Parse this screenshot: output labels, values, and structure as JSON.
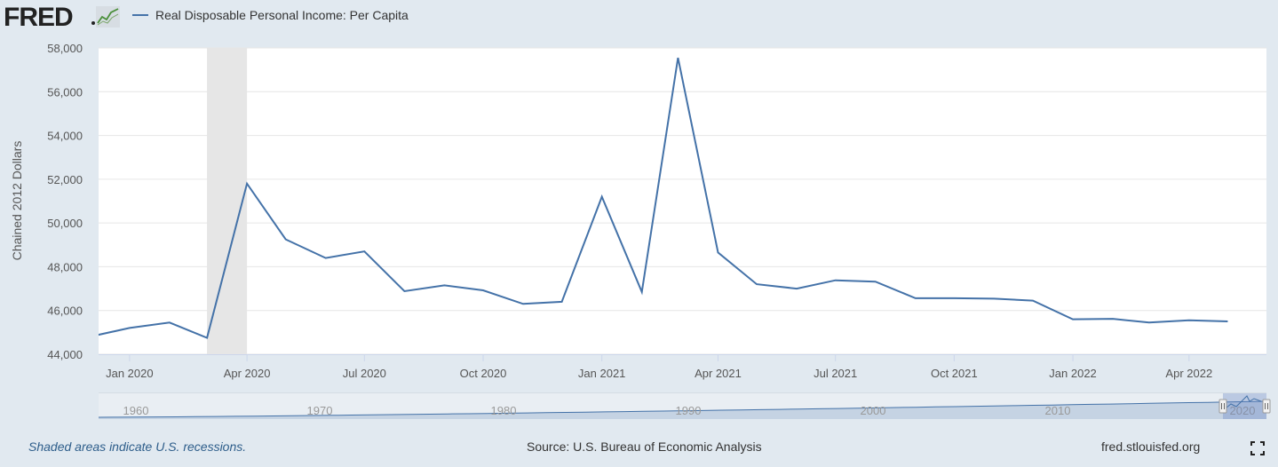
{
  "header": {
    "logo_text": "FRED",
    "series_name": "Real Disposable Personal Income: Per Capita",
    "series_color": "#4472a8"
  },
  "footer": {
    "recession_note": "Shaded areas indicate U.S. recessions.",
    "source": "Source: U.S. Bureau of Economic Analysis",
    "site": "fred.stlouisfed.org"
  },
  "navigator": {
    "labels": [
      "1960",
      "1970",
      "1980",
      "1990",
      "2000",
      "2010",
      "2020"
    ]
  },
  "chart_data": {
    "type": "line",
    "ylabel": "Chained 2012 Dollars",
    "ylim": [
      44000,
      58000
    ],
    "yticks": [
      44000,
      46000,
      48000,
      50000,
      52000,
      54000,
      56000,
      58000
    ],
    "ytick_labels": [
      "44,000",
      "46,000",
      "48,000",
      "50,000",
      "52,000",
      "54,000",
      "56,000",
      "58,000"
    ],
    "xlim": [
      "2019-12-08",
      "2022-05-31"
    ],
    "xticks": [
      "2020-01-01",
      "2020-04-01",
      "2020-07-01",
      "2020-10-01",
      "2021-01-01",
      "2021-04-01",
      "2021-07-01",
      "2021-10-01",
      "2022-01-01",
      "2022-04-01"
    ],
    "xtick_labels": [
      "Jan 2020",
      "Apr 2020",
      "Jul 2020",
      "Oct 2020",
      "Jan 2021",
      "Apr 2021",
      "Jul 2021",
      "Oct 2021",
      "Jan 2022",
      "Apr 2022"
    ],
    "recessions": [
      [
        "2020-03-01",
        "2020-04-01"
      ]
    ],
    "grid": true,
    "series": [
      {
        "name": "Real Disposable Personal Income: Per Capita",
        "color": "#4472a8",
        "x": [
          "2019-12-01",
          "2020-01-01",
          "2020-02-01",
          "2020-03-01",
          "2020-04-01",
          "2020-05-01",
          "2020-06-01",
          "2020-07-01",
          "2020-08-01",
          "2020-09-01",
          "2020-10-01",
          "2020-11-01",
          "2020-12-01",
          "2021-01-01",
          "2021-02-01",
          "2021-03-01",
          "2021-04-01",
          "2021-05-01",
          "2021-06-01",
          "2021-07-01",
          "2021-08-01",
          "2021-09-01",
          "2021-10-01",
          "2021-11-01",
          "2021-12-01",
          "2022-01-01",
          "2022-02-01",
          "2022-03-01",
          "2022-04-01",
          "2022-05-01"
        ],
        "values": [
          44800,
          45200,
          45450,
          44750,
          51800,
          49250,
          48400,
          48700,
          46880,
          47150,
          46920,
          46300,
          46400,
          51200,
          46850,
          57550,
          48650,
          47200,
          47000,
          47380,
          47320,
          46560,
          46560,
          46540,
          46450,
          45600,
          45620,
          45450,
          45550,
          45500
        ]
      }
    ]
  }
}
